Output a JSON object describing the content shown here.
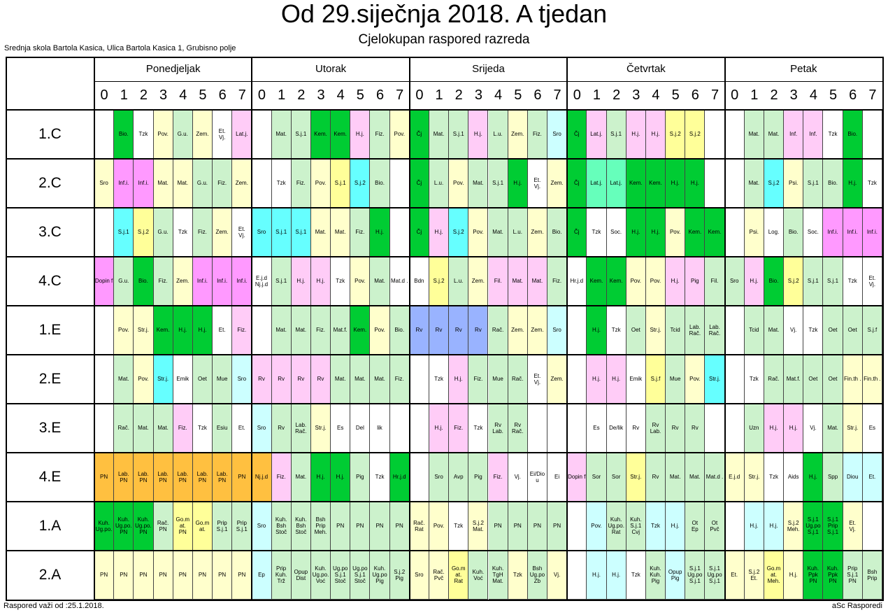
{
  "title": "Od 29.siječnja 2018. A tjedan",
  "subtitle": "Cjelokupan raspored razreda",
  "school": "Srednja skola Bartola Kasica, Ulica Bartola Kasica 1, Grubisno polje",
  "footer_left": "Raspored važi od :25.1.2018.",
  "footer_right": "aSc Rasporedi",
  "colors": {
    "green": "#00cc33",
    "lightgreen": "#ccf2cc",
    "yellow": "#ffff99",
    "lightyellow": "#ffffcc",
    "pink": "#ffccf7",
    "magenta": "#ff99ff",
    "cyan": "#66ffff",
    "lightcyan": "#ccffff",
    "mint": "#66ffbb",
    "orange": "#ffc040",
    "blue": "#99b3ff",
    "white": "#ffffff"
  },
  "days": [
    "Ponedjeljak",
    "Utorak",
    "Srijeda",
    "Četvrtak",
    "Petak"
  ],
  "periods": [
    "0",
    "1",
    "2",
    "3",
    "4",
    "5",
    "6",
    "7"
  ],
  "classes": [
    "1.C",
    "2.C",
    "3.C",
    "4.C",
    "1.E",
    "2.E",
    "3.E",
    "4.E",
    "1.A",
    "2.A"
  ],
  "lessons": [
    [
      [
        "",
        "Bio.",
        "Tzk",
        "Pov.",
        "G.u.",
        "Zem.",
        "Et. / Vj.",
        "Lat.j.",
        "",
        "Mat.",
        "S.j.1",
        "Kem.",
        "Kem.",
        "H.j.",
        "Fiz.",
        "Pov.",
        "Čj",
        "Mat.",
        "S.j.1",
        "H.j.",
        "L.u.",
        "Zem.",
        "Fiz.",
        "Sro",
        "Čj",
        "Lat.j.",
        "S.j.1",
        "H.j.",
        "H.j.",
        "S.j.2",
        "S.j.2",
        "",
        "",
        "Mat.",
        "Mat.",
        "Inf.",
        "Inf.",
        "Tzk",
        "Bio.",
        ""
      ],
      [
        "Sro",
        "Inf.i.",
        "Inf.i.",
        "Mat.",
        "Mat.",
        "G.u.",
        "Fiz.",
        "Zem.",
        "",
        "Tzk",
        "Fiz.",
        "Pov.",
        "S.j.1",
        "S.j.2",
        "Bio.",
        "",
        "Čj",
        "L.u.",
        "Pov.",
        "Mat.",
        "S.j.1",
        "H.j.",
        "Et. / Vj.",
        "Zem.",
        "Čj",
        "Lat.j.",
        "Lat.j.",
        "Kem.",
        "Kem.",
        "H.j.",
        "H.j.",
        "",
        "",
        "Mat.",
        "S.j.2",
        "Psi.",
        "S.j.1",
        "Bio.",
        "H.j.",
        "Tzk"
      ],
      [
        "",
        "S.j.1",
        "S.j.2",
        "G.u.",
        "Tzk",
        "Fiz.",
        "Zem.",
        "Et. / Vj.",
        "Sro",
        "S.j.1",
        "S.j.1",
        "Mat.",
        "Mat.",
        "Fiz.",
        "H.j.",
        "",
        "Čj",
        "H.j.",
        "S.j.2",
        "Pov.",
        "Mat.",
        "L.u.",
        "Zem.",
        "Bio.",
        "Čj",
        "Tzk",
        "Soc.",
        "H.j.",
        "H.j.",
        "Pov.",
        "Kem.",
        "Kem.",
        "",
        "Psi.",
        "Log.",
        "Bio.",
        "Soc.",
        "Inf.i.",
        "Inf.i.",
        "Inf.i."
      ],
      [
        "Dopin f",
        "G.u.",
        "Bio.",
        "Fiz.",
        "Zem.",
        "Inf.i.",
        "Inf.i.",
        "Inf.i.",
        "E.j.d / Nj.j.d",
        "S.j.1",
        "H.j.",
        "H.j.",
        "Tzk",
        "Pov.",
        "Mat.",
        "Mat.d .",
        "Bdn",
        "S.j.2",
        "L.u.",
        "Zem.",
        "Fil.",
        "Mat.",
        "Mat.",
        "Fiz.",
        "Hr.j.d",
        "Kem.",
        "Kem.",
        "Pov.",
        "Pov.",
        "H.j.",
        "Pig",
        "Fil.",
        "Sro",
        "H.j.",
        "Bio.",
        "S.j.2",
        "S.j.1",
        "S.j.1",
        "Tzk",
        "Et. / Vj."
      ],
      [
        "",
        "Pov.",
        "Str.j.",
        "Kem.",
        "H.j.",
        "H.j.",
        "Et.",
        "Fiz.",
        "",
        "Mat.",
        "Mat.",
        "Fiz.",
        "Mat.f.",
        "Kem.",
        "Pov.",
        "Bio.",
        "Rv",
        "Rv",
        "Rv",
        "Rv",
        "Rač.",
        "Zem.",
        "Zem.",
        "Sro",
        "",
        "H.j.",
        "Tzk",
        "Oet",
        "Str.j.",
        "Tcid",
        "Lab. / Rač.",
        "Lab. / Rač.",
        "",
        "Tcid",
        "Mat.",
        "Vj.",
        "Tzk",
        "Oet",
        "Oet",
        "S.j.f"
      ],
      [
        "",
        "Mat.",
        "Pov.",
        "Str.j.",
        "Emik",
        "Oet",
        "Mue",
        "Sro",
        "Rv",
        "Rv",
        "Rv",
        "Rv",
        "Mat.",
        "Mat.",
        "Mat.",
        "Fiz.",
        "",
        "Tzk",
        "H.j.",
        "Fiz.",
        "Mue",
        "Rač.",
        "Et. / Vj.",
        "Zem.",
        "",
        "H.j.",
        "H.j.",
        "Emik",
        "S.j.f",
        "Mue",
        "Pov.",
        "Str.j.",
        "",
        "Tzk",
        "Rač.",
        "Mat.f.",
        "Oet",
        "Oet",
        "Fin.th .",
        "Fin.th ."
      ],
      [
        "",
        "Rač.",
        "Mat.",
        "Mat.",
        "Fiz.",
        "Tzk",
        "Esiu",
        "Et.",
        "Sro",
        "Rv",
        "Lab. / Rač.",
        "Str.j.",
        "Es",
        "Del",
        "lik",
        "",
        "",
        "H.j.",
        "Fiz.",
        "Tzk",
        "Rv / Lab.",
        "Rv / Rač.",
        "",
        "",
        "",
        "Es",
        "De/lik",
        "Rv",
        "Rv / Lab.",
        "Rv",
        "Rv",
        "",
        "",
        "Uzn",
        "H.j.",
        "H.j.",
        "Vj.",
        "Mat.",
        "Str.j.",
        "Es"
      ],
      [
        "PN",
        "Lab. / PN",
        "Lab. / PN",
        "Lab. / PN",
        "Lab. / PN",
        "Lab. / PN",
        "Lab. / PN",
        "PN",
        "Nj.j.d",
        "Fiz.",
        "Mat.",
        "H.j.",
        "H.j.",
        "Pig",
        "Tzk",
        "Hr.j.d",
        "",
        "Sro",
        "Avp",
        "Pig",
        "Fiz.",
        "Vj.",
        "Ei/Dio u",
        "Ei",
        "Dopin f",
        "Sor",
        "Sor",
        "Str.j.",
        "Rv",
        "Mat.",
        "Mat.",
        "Mat.d .",
        "E.j.d",
        "Str.j.",
        "Tzk",
        "Aids",
        "H.j.",
        "Spp",
        "Diou",
        "Et."
      ],
      [
        "Kuh. / Ug.po.",
        "Kuh. / Ug.po. / PN",
        "Kuh. / Ug.po. / PN",
        "Rač. / PN",
        "Go.m at. / PN",
        "Go.m at.",
        "Prip / S.j.1",
        "Prip / S.j.1",
        "Sro",
        "Kuh. / Bsh / Stoč",
        "Kuh. / Bsh / Stoč",
        "Bsh / Prip / Meh.",
        "PN",
        "PN",
        "PN",
        "PN",
        "Rač. / Rat",
        "Pov.",
        "Tzk",
        "S.j.2 / Mat.",
        "PN",
        "PN",
        "PN",
        "PN",
        "",
        "Pov.",
        "Kuh. / Ug.po. / Rat",
        "Kuh. / S.j.1 / Cvj",
        "Tzk",
        "H.j.",
        "Ot / Ep",
        "Ot / Pvč",
        "",
        "H.j.",
        "H.j.",
        "S.j.2 / Meh.",
        "S.j.1 / Ug.po / S.j.1",
        "S.j.1 / Prip / S.j.1",
        "Et. / Vj.",
        ""
      ],
      [
        "PN",
        "PN",
        "PN",
        "PN",
        "PN",
        "PN",
        "PN",
        "PN",
        "Ep",
        "Prip / Kuh. / Trž",
        "Opup / Dist",
        "Kuh. / Ug.po. / Voć",
        "Ug.po / S.j.1 / Stoč",
        "Ug.po / S.j.1 / Stoč",
        "Kuh. / Ug.po / Pig",
        "S.j.2 / Pig",
        "Sro",
        "Rač. / Pvč",
        "Go.m at. / Rat",
        "Kuh. / Voć",
        "Kuh. / TgH / Mat.",
        "Tzk",
        "Bsh / Ug.po / Zb",
        "Vj.",
        "",
        "H.j.",
        "H.j.",
        "Tzk",
        "Kuh. / Kuh. / Pig",
        "Opup / Pig",
        "S.j.1 / Ug.po / S.j.1",
        "S.j.1 / Ug.po / S.j.1",
        "Et.",
        "S.j.2 / Et.",
        "Go.m at. / Meh.",
        "H.j.",
        "Kuh. / Ppk / PN",
        "Kuh. / Ppk / PN",
        "Prip / S.j.1 / PN",
        "Bsh / Prip"
      ]
    ]
  ],
  "cell_colors": [
    [
      "white",
      "green",
      "white",
      "lightyellow",
      "lightgreen",
      "lightyellow",
      "white",
      "pink",
      "white",
      "lightgreen",
      "lightgreen",
      "green",
      "green",
      "pink",
      "lightgreen",
      "lightyellow",
      "green",
      "lightgreen",
      "lightgreen",
      "pink",
      "lightgreen",
      "lightyellow",
      "lightgreen",
      "lightcyan",
      "green",
      "pink",
      "lightgreen",
      "pink",
      "pink",
      "yellow",
      "yellow",
      "white",
      "white",
      "lightgreen",
      "lightgreen",
      "pink",
      "pink",
      "white",
      "green",
      "white"
    ],
    [
      "lightyellow",
      "magenta",
      "magenta",
      "lightyellow",
      "lightyellow",
      "lightgreen",
      "lightgreen",
      "lightyellow",
      "white",
      "white",
      "lightgreen",
      "lightyellow",
      "yellow",
      "cyan",
      "lightgreen",
      "white",
      "green",
      "lightgreen",
      "lightyellow",
      "lightgreen",
      "lightgreen",
      "green",
      "white",
      "lightyellow",
      "green",
      "mint",
      "mint",
      "green",
      "green",
      "green",
      "green",
      "white",
      "white",
      "lightgreen",
      "cyan",
      "lightyellow",
      "lightgreen",
      "lightgreen",
      "green",
      "white"
    ],
    [
      "white",
      "cyan",
      "yellow",
      "lightgreen",
      "white",
      "lightgreen",
      "lightyellow",
      "white",
      "cyan",
      "cyan",
      "cyan",
      "lightyellow",
      "lightyellow",
      "lightgreen",
      "green",
      "white",
      "green",
      "pink",
      "cyan",
      "lightyellow",
      "lightgreen",
      "lightgreen",
      "lightyellow",
      "lightgreen",
      "green",
      "white",
      "white",
      "green",
      "green",
      "lightyellow",
      "green",
      "green",
      "white",
      "lightyellow",
      "white",
      "lightgreen",
      "white",
      "magenta",
      "magenta",
      "magenta"
    ],
    [
      "magenta",
      "lightgreen",
      "green",
      "lightgreen",
      "lightyellow",
      "magenta",
      "magenta",
      "magenta",
      "white",
      "lightgreen",
      "pink",
      "pink",
      "white",
      "lightyellow",
      "lightgreen",
      "white",
      "white",
      "yellow",
      "lightgreen",
      "lightyellow",
      "pink",
      "pink",
      "pink",
      "lightgreen",
      "white",
      "green",
      "green",
      "lightyellow",
      "lightyellow",
      "pink",
      "pink",
      "lightgreen",
      "lightgreen",
      "pink",
      "green",
      "yellow",
      "lightgreen",
      "lightgreen",
      "white",
      "white"
    ],
    [
      "white",
      "lightyellow",
      "lightyellow",
      "green",
      "green",
      "green",
      "white",
      "pink",
      "white",
      "lightgreen",
      "lightgreen",
      "lightgreen",
      "lightgreen",
      "green",
      "lightyellow",
      "lightgreen",
      "blue",
      "blue",
      "blue",
      "blue",
      "lightgreen",
      "lightyellow",
      "lightyellow",
      "lightcyan",
      "white",
      "green",
      "white",
      "lightgreen",
      "lightyellow",
      "lightgreen",
      "lightgreen",
      "lightgreen",
      "white",
      "lightgreen",
      "lightgreen",
      "white",
      "white",
      "lightgreen",
      "lightgreen",
      "lightgreen"
    ],
    [
      "white",
      "lightgreen",
      "lightyellow",
      "cyan",
      "white",
      "lightgreen",
      "lightgreen",
      "lightcyan",
      "pink",
      "pink",
      "pink",
      "pink",
      "lightgreen",
      "lightgreen",
      "lightgreen",
      "lightgreen",
      "white",
      "white",
      "pink",
      "lightgreen",
      "lightgreen",
      "lightgreen",
      "white",
      "lightyellow",
      "white",
      "pink",
      "pink",
      "white",
      "yellow",
      "lightgreen",
      "lightyellow",
      "cyan",
      "white",
      "white",
      "lightgreen",
      "lightgreen",
      "lightgreen",
      "lightgreen",
      "lightyellow",
      "lightyellow"
    ],
    [
      "white",
      "lightgreen",
      "lightgreen",
      "lightgreen",
      "pink",
      "white",
      "lightgreen",
      "white",
      "lightcyan",
      "lightgreen",
      "lightgreen",
      "lightyellow",
      "white",
      "white",
      "white",
      "white",
      "white",
      "pink",
      "pink",
      "white",
      "lightgreen",
      "lightgreen",
      "white",
      "white",
      "white",
      "white",
      "white",
      "white",
      "lightgreen",
      "lightgreen",
      "lightgreen",
      "white",
      "white",
      "lightgreen",
      "pink",
      "pink",
      "white",
      "lightgreen",
      "lightyellow",
      "white"
    ],
    [
      "orange",
      "orange",
      "orange",
      "orange",
      "orange",
      "orange",
      "orange",
      "orange",
      "orange",
      "pink",
      "lightgreen",
      "green",
      "green",
      "lightgreen",
      "white",
      "green",
      "white",
      "lightgreen",
      "lightgreen",
      "lightgreen",
      "pink",
      "white",
      "white",
      "white",
      "pink",
      "lightgreen",
      "lightgreen",
      "yellow",
      "lightgreen",
      "lightgreen",
      "lightgreen",
      "lightgreen",
      "lightyellow",
      "lightyellow",
      "white",
      "white",
      "green",
      "lightgreen",
      "lightcyan",
      "lightcyan"
    ],
    [
      "green",
      "green",
      "green",
      "lightgreen",
      "yellow",
      "yellow",
      "lightgreen",
      "lightgreen",
      "lightcyan",
      "lightgreen",
      "lightgreen",
      "lightgreen",
      "lightgreen",
      "lightgreen",
      "lightgreen",
      "lightgreen",
      "lightyellow",
      "lightyellow",
      "white",
      "lightyellow",
      "lightgreen",
      "lightgreen",
      "lightgreen",
      "lightgreen",
      "white",
      "lightcyan",
      "lightgreen",
      "lightgreen",
      "lightcyan",
      "lightcyan",
      "lightgreen",
      "lightgreen",
      "white",
      "lightcyan",
      "lightcyan",
      "lightyellow",
      "green",
      "green",
      "lightyellow",
      "white"
    ],
    [
      "lightyellow",
      "lightyellow",
      "lightyellow",
      "lightyellow",
      "lightyellow",
      "lightyellow",
      "lightyellow",
      "lightyellow",
      "lightcyan",
      "lightgreen",
      "lightgreen",
      "lightgreen",
      "lightgreen",
      "lightgreen",
      "lightgreen",
      "lightgreen",
      "lightyellow",
      "lightyellow",
      "yellow",
      "lightgreen",
      "lightgreen",
      "lightyellow",
      "lightgreen",
      "lightyellow",
      "white",
      "lightcyan",
      "lightcyan",
      "white",
      "lightgreen",
      "lightcyan",
      "lightgreen",
      "lightgreen",
      "lightyellow",
      "lightyellow",
      "yellow",
      "lightyellow",
      "green",
      "green",
      "lightgreen",
      "lightgreen"
    ]
  ]
}
